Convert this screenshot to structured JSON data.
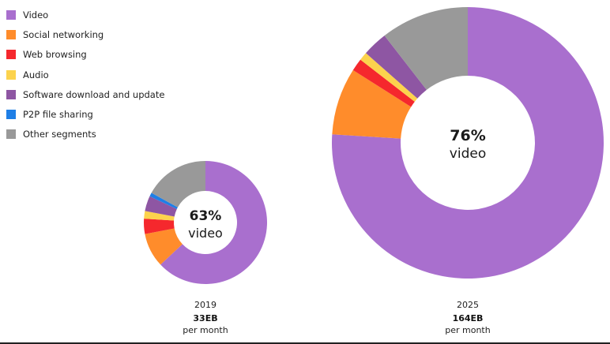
{
  "legend": [
    {
      "label": "Video",
      "color": "#a96fce"
    },
    {
      "label": "Social networking",
      "color": "#ff8c2b"
    },
    {
      "label": "Web browsing",
      "color": "#f5282d"
    },
    {
      "label": "Audio",
      "color": "#fcd34d"
    },
    {
      "label": "Software download and update",
      "color": "#8e56a3"
    },
    {
      "label": "P2P file sharing",
      "color": "#1f7fe6"
    },
    {
      "label": "Other segments",
      "color": "#999999"
    }
  ],
  "chart_data": [
    {
      "type": "pie",
      "year": "2019",
      "volume": "33EB",
      "unit": "per month",
      "center_value": "63%",
      "center_label": "video",
      "categories": [
        "Video",
        "Social networking",
        "Web browsing",
        "Audio",
        "Software download and update",
        "P2P file sharing",
        "Other segments"
      ],
      "values": [
        63,
        9,
        4,
        2,
        4,
        1,
        17
      ],
      "colors": [
        "#a96fce",
        "#ff8c2b",
        "#f5282d",
        "#fcd34d",
        "#8e56a3",
        "#1f7fe6",
        "#999999"
      ]
    },
    {
      "type": "pie",
      "year": "2025",
      "volume": "164EB",
      "unit": "per month",
      "center_value": "76%",
      "center_label": "video",
      "categories": [
        "Video",
        "Social networking",
        "Web browsing",
        "Audio",
        "Software download and update",
        "P2P file sharing",
        "Other segments"
      ],
      "values": [
        76,
        8,
        1.5,
        1,
        3,
        0,
        10.5
      ],
      "colors": [
        "#a96fce",
        "#ff8c2b",
        "#f5282d",
        "#fcd34d",
        "#8e56a3",
        "#1f7fe6",
        "#999999"
      ]
    }
  ]
}
